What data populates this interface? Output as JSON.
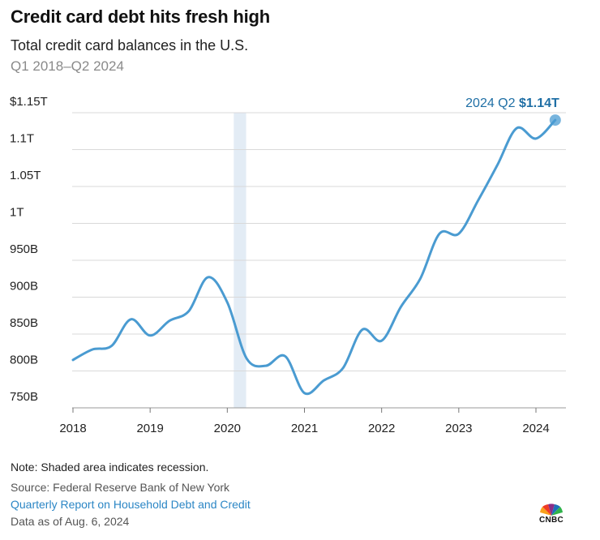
{
  "header": {
    "title": "Credit card debt hits fresh high",
    "subtitle": "Total credit card balances in the U.S.",
    "date_range": "Q1 2018–Q2 2024"
  },
  "footer": {
    "note": "Note: Shaded area indicates recession.",
    "source": "Source: Federal Reserve Bank of New York",
    "report": "Quarterly Report on Household Debt and Credit",
    "as_of": "Data as of Aug. 6, 2024",
    "logo": "CNBC"
  },
  "colors": {
    "line": "#4a9bd1",
    "recession": "#e3ecf5",
    "grid": "#d9d9d9",
    "highlight_label": "#1f6fa5"
  },
  "chart_data": {
    "type": "line",
    "title": "Credit card debt hits fresh high",
    "subtitle": "Total credit card balances in the U.S.",
    "xlabel": "",
    "ylabel": "",
    "units": "USD",
    "ylim": [
      750,
      1150
    ],
    "xlim": [
      2018.0,
      2024.4
    ],
    "y_ticks": [
      {
        "value": 1150,
        "label": "$1.15T"
      },
      {
        "value": 1100,
        "label": "1.1T"
      },
      {
        "value": 1050,
        "label": "1.05T"
      },
      {
        "value": 1000,
        "label": "1T"
      },
      {
        "value": 950,
        "label": "950B"
      },
      {
        "value": 900,
        "label": "900B"
      },
      {
        "value": 850,
        "label": "850B"
      },
      {
        "value": 800,
        "label": "800B"
      },
      {
        "value": 750,
        "label": "750B"
      }
    ],
    "x_ticks": [
      {
        "value": 2018,
        "label": "2018"
      },
      {
        "value": 2019,
        "label": "2019"
      },
      {
        "value": 2020,
        "label": "2020"
      },
      {
        "value": 2021,
        "label": "2021"
      },
      {
        "value": 2022,
        "label": "2022"
      },
      {
        "value": 2023,
        "label": "2023"
      },
      {
        "value": 2024,
        "label": "2024"
      }
    ],
    "recession_band": {
      "start": 2020.0,
      "end": 2020.16
    },
    "series": [
      {
        "name": "Total credit card balances",
        "x": [
          2018.0,
          2018.25,
          2018.5,
          2018.75,
          2019.0,
          2019.25,
          2019.5,
          2019.75,
          2020.0,
          2020.25,
          2020.5,
          2020.75,
          2021.0,
          2021.25,
          2021.5,
          2021.75,
          2022.0,
          2022.25,
          2022.5,
          2022.75,
          2023.0,
          2023.25,
          2023.5,
          2023.75,
          2024.0,
          2024.25
        ],
        "values": [
          815,
          829,
          834,
          870,
          848,
          868,
          881,
          927,
          893,
          817,
          807,
          820,
          770,
          787,
          804,
          856,
          841,
          887,
          925,
          986,
          986,
          1031,
          1079,
          1129,
          1115,
          1140
        ]
      }
    ],
    "annotations": [
      {
        "x": 2024.25,
        "y": 1140,
        "prefix": "2024 Q2",
        "value_label": "$1.14T"
      }
    ],
    "grid": true
  }
}
